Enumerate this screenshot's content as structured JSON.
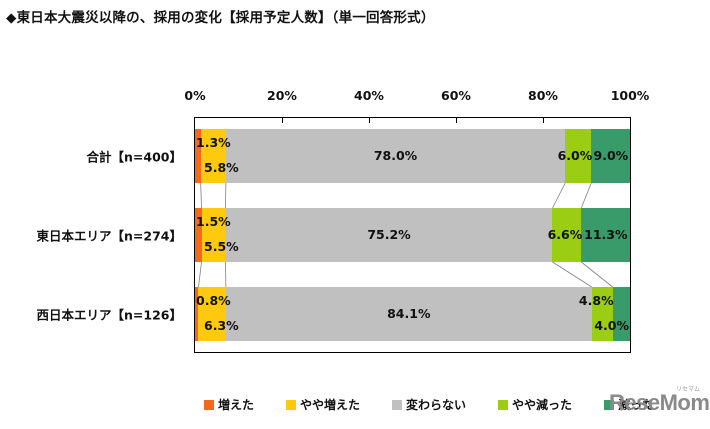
{
  "title": "◆東日本大震災以降の、採用の変化【採用予定人数】（単一回答形式）",
  "axis": {
    "ticks": [
      "0%",
      "20%",
      "40%",
      "60%",
      "80%",
      "100%"
    ]
  },
  "legend": [
    {
      "label": "増えた",
      "color": "#F26B1D"
    },
    {
      "label": "やや増えた",
      "color": "#FFC90E"
    },
    {
      "label": "変わらない",
      "color": "#C0C0C0"
    },
    {
      "label": "やや減った",
      "color": "#9ACD14"
    },
    {
      "label": "減った",
      "color": "#3A9B6A"
    }
  ],
  "rows": [
    {
      "label": "合計【n=400】",
      "values": [
        "1.3%",
        "5.8%",
        "78.0%",
        "6.0%",
        "9.0%"
      ]
    },
    {
      "label": "東日本エリア【n=274】",
      "values": [
        "1.5%",
        "5.5%",
        "75.2%",
        "6.6%",
        "11.3%"
      ]
    },
    {
      "label": "西日本エリア【n=126】",
      "values": [
        "0.8%",
        "6.3%",
        "84.1%",
        "4.8%",
        "4.0%"
      ]
    }
  ],
  "logo": {
    "text": "ReseMom",
    "sub": "リセマム"
  },
  "chart_data": {
    "type": "bar",
    "orientation": "horizontal",
    "stacked": "100%",
    "title": "◆東日本大震災以降の、採用の変化【採用予定人数】（単一回答形式）",
    "categories": [
      "合計【n=400】",
      "東日本エリア【n=274】",
      "西日本エリア【n=126】"
    ],
    "series": [
      {
        "name": "増えた",
        "color": "#F26B1D",
        "values": [
          1.3,
          1.5,
          0.8
        ]
      },
      {
        "name": "やや増えた",
        "color": "#FFC90E",
        "values": [
          5.8,
          5.5,
          6.3
        ]
      },
      {
        "name": "変わらない",
        "color": "#C0C0C0",
        "values": [
          78.0,
          75.2,
          84.1
        ]
      },
      {
        "name": "やや減った",
        "color": "#9ACD14",
        "values": [
          6.0,
          6.6,
          4.8
        ]
      },
      {
        "name": "減った",
        "color": "#3A9B6A",
        "values": [
          9.0,
          11.3,
          4.0
        ]
      }
    ],
    "xlabel": "",
    "ylabel": "",
    "xlim": [
      0,
      100
    ],
    "xticks": [
      "0%",
      "20%",
      "40%",
      "60%",
      "80%",
      "100%"
    ],
    "xaxis_position": "top",
    "grid": false,
    "legend_position": "bottom",
    "series_lines": true
  }
}
